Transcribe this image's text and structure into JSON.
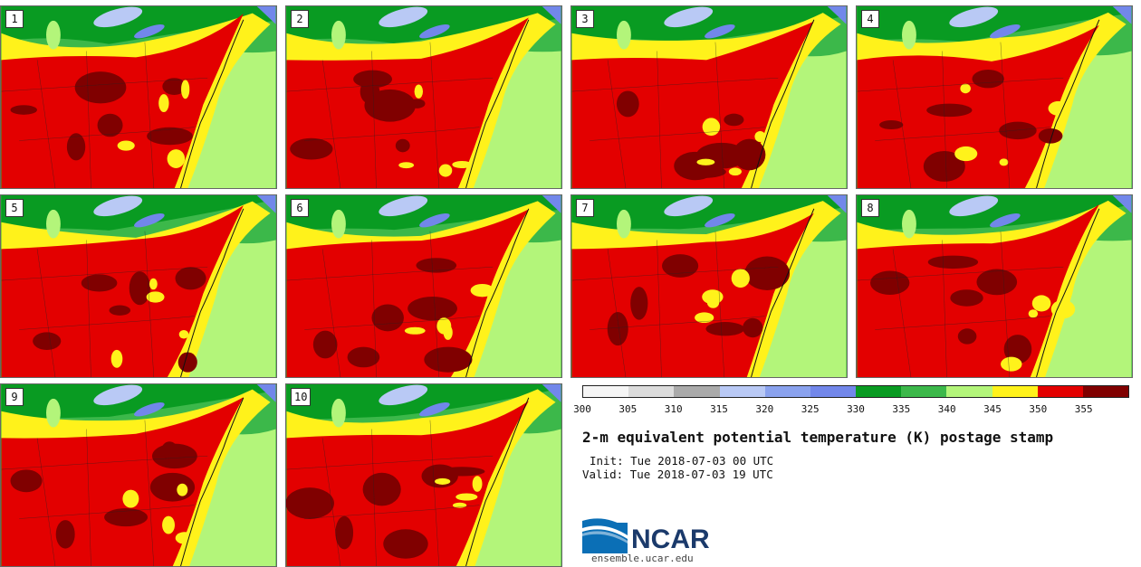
{
  "members": [
    {
      "label": "1"
    },
    {
      "label": "2"
    },
    {
      "label": "3"
    },
    {
      "label": "4"
    },
    {
      "label": "5"
    },
    {
      "label": "6"
    },
    {
      "label": "7"
    },
    {
      "label": "8"
    },
    {
      "label": "9"
    },
    {
      "label": "10"
    }
  ],
  "colorbar": {
    "colors": [
      "#f5f5f5",
      "#dcdcdc",
      "#aaaaaa",
      "#b9c9f5",
      "#8aa2ee",
      "#7287ea",
      "#099b22",
      "#3cb84a",
      "#b3f57a",
      "#fff21b",
      "#e30000",
      "#800000"
    ],
    "ticks": [
      "300",
      "305",
      "310",
      "315",
      "320",
      "325",
      "330",
      "335",
      "340",
      "345",
      "350",
      "355"
    ],
    "units": "K"
  },
  "title": "2-m equivalent potential temperature (K) postage stamp",
  "init_text": "Init: Tue 2018-07-03 00 UTC",
  "valid_text": "Valid: Tue 2018-07-03 19 UTC",
  "logo": {
    "name": "NCAR",
    "site": "ensemble.ucar.edu"
  }
}
